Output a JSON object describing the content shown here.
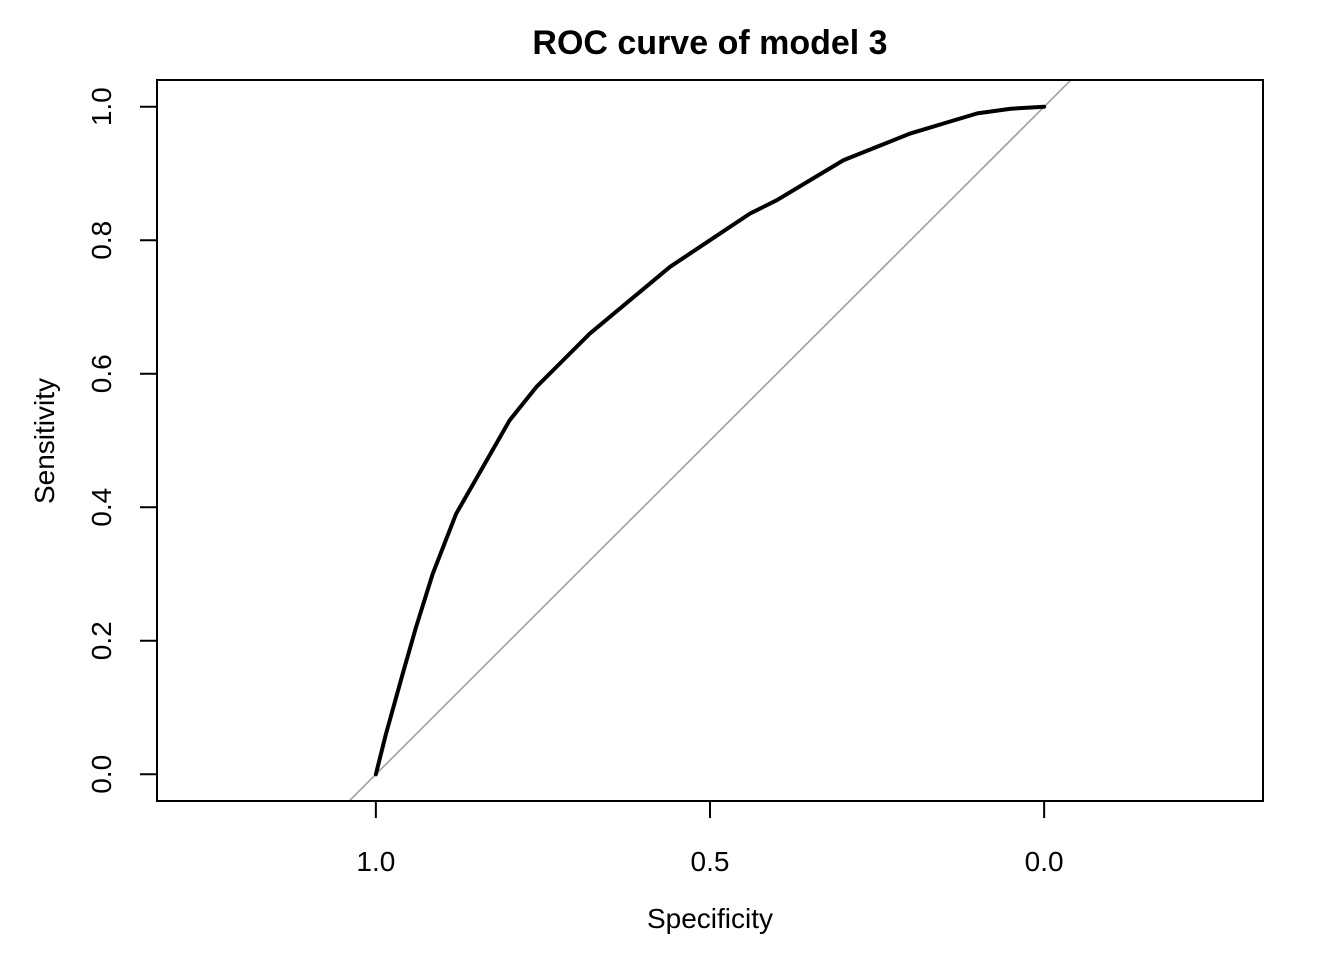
{
  "chart_data": {
    "type": "line",
    "title": "ROC curve of model 3",
    "xlabel": "Specificity",
    "ylabel": "Sensitivity",
    "x_reversed": true,
    "xlim": [
      1.3275,
      -0.3275
    ],
    "ylim": [
      -0.04,
      1.04
    ],
    "x_ticks": [
      1.0,
      0.5,
      0.0
    ],
    "x_tick_labels": [
      "1.0",
      "0.5",
      "0.0"
    ],
    "y_ticks": [
      0.0,
      0.2,
      0.4,
      0.6,
      0.8,
      1.0
    ],
    "y_tick_labels": [
      "0.0",
      "0.2",
      "0.4",
      "0.6",
      "0.8",
      "1.0"
    ],
    "grid": false,
    "legend": "none",
    "series": [
      {
        "color": "#000000",
        "x": [
          1.0,
          0.985,
          0.96,
          0.94,
          0.915,
          0.88,
          0.84,
          0.8,
          0.76,
          0.72,
          0.68,
          0.62,
          0.56,
          0.5,
          0.44,
          0.4,
          0.35,
          0.3,
          0.25,
          0.2,
          0.15,
          0.1,
          0.05,
          0.0
        ],
        "y": [
          0.0,
          0.06,
          0.15,
          0.22,
          0.3,
          0.39,
          0.46,
          0.53,
          0.58,
          0.62,
          0.66,
          0.71,
          0.76,
          0.8,
          0.84,
          0.86,
          0.89,
          0.92,
          0.94,
          0.96,
          0.975,
          0.99,
          0.997,
          1.0
        ]
      }
    ],
    "reference_line": {
      "color": "#a0a0a0",
      "intercept": 1,
      "slope": -1
    }
  }
}
